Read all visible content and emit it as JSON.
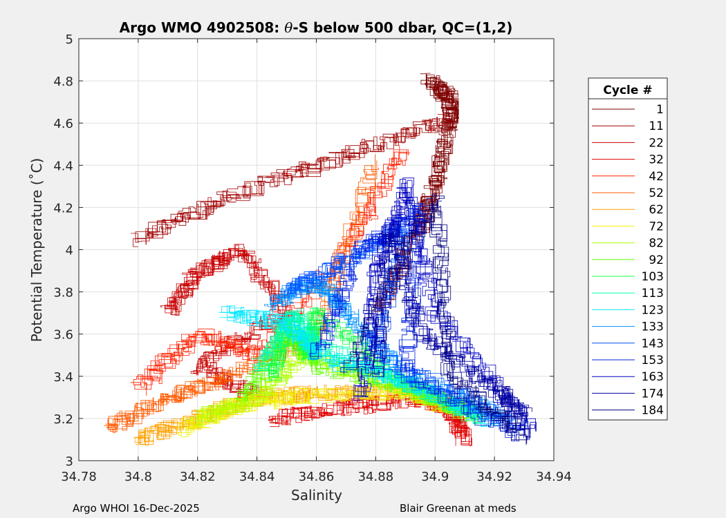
{
  "chart_data": {
    "type": "line",
    "title_prefix": "Argo WMO 4902508: ",
    "title_theta": "θ",
    "title_suffix": "-S below 500 dbar,  QC=(1,2)",
    "xlabel": "Salinity",
    "ylabel": "Potential Temperature (˚C)",
    "xlim": [
      34.78,
      34.94
    ],
    "ylim": [
      3,
      5
    ],
    "xticks": [
      "34.78",
      "34.8",
      "34.82",
      "34.84",
      "34.86",
      "34.88",
      "34.9",
      "34.92",
      "34.94"
    ],
    "yticks": [
      "3",
      "3.2",
      "3.4",
      "3.6",
      "3.8",
      "4",
      "4.2",
      "4.4",
      "4.6",
      "4.8",
      "5"
    ],
    "grid": true,
    "legend_title": "Cycle #",
    "legend_placement": "outside-right",
    "series": [
      {
        "name": "1",
        "color": "#7f0000",
        "points": [
          [
            34.898,
            4.8
          ],
          [
            34.905,
            4.72
          ],
          [
            34.905,
            4.6
          ],
          [
            34.9,
            4.3
          ],
          [
            34.895,
            4.1
          ],
          [
            34.88,
            3.7
          ]
        ]
      },
      {
        "name": "11",
        "color": "#a00000",
        "points": [
          [
            34.8,
            4.05
          ],
          [
            34.83,
            4.25
          ],
          [
            34.87,
            4.45
          ],
          [
            34.905,
            4.62
          ]
        ]
      },
      {
        "name": "22",
        "color": "#c80000",
        "points": [
          [
            34.81,
            3.7
          ],
          [
            34.82,
            3.9
          ],
          [
            34.835,
            4.0
          ],
          [
            34.85,
            3.7
          ],
          [
            34.82,
            3.45
          ],
          [
            34.84,
            3.3
          ]
        ]
      },
      {
        "name": "32",
        "color": "#e00000",
        "points": [
          [
            34.845,
            3.2
          ],
          [
            34.87,
            3.25
          ],
          [
            34.895,
            3.3
          ],
          [
            34.905,
            3.25
          ],
          [
            34.91,
            3.1
          ]
        ]
      },
      {
        "name": "42",
        "color": "#ff2000",
        "points": [
          [
            34.8,
            3.35
          ],
          [
            34.82,
            3.6
          ],
          [
            34.84,
            3.5
          ],
          [
            34.87,
            4.0
          ],
          [
            34.89,
            4.5
          ]
        ]
      },
      {
        "name": "52",
        "color": "#ff5a00",
        "points": [
          [
            34.79,
            3.15
          ],
          [
            34.81,
            3.3
          ],
          [
            34.83,
            3.4
          ],
          [
            34.86,
            3.6
          ],
          [
            34.88,
            4.45
          ]
        ]
      },
      {
        "name": "62",
        "color": "#ffa000",
        "points": [
          [
            34.8,
            3.1
          ],
          [
            34.82,
            3.2
          ],
          [
            34.84,
            3.3
          ],
          [
            34.86,
            3.32
          ],
          [
            34.89,
            3.33
          ],
          [
            34.905,
            3.25
          ]
        ]
      },
      {
        "name": "72",
        "color": "#f0f000",
        "points": [
          [
            34.815,
            3.15
          ],
          [
            34.83,
            3.25
          ],
          [
            34.85,
            3.3
          ],
          [
            34.89,
            3.33
          ],
          [
            34.91,
            3.25
          ]
        ]
      },
      {
        "name": "82",
        "color": "#b0ff00",
        "points": [
          [
            34.82,
            3.2
          ],
          [
            34.84,
            3.3
          ],
          [
            34.855,
            3.5
          ],
          [
            34.89,
            3.34
          ],
          [
            34.912,
            3.22
          ]
        ]
      },
      {
        "name": "92",
        "color": "#60ff00",
        "points": [
          [
            34.835,
            3.3
          ],
          [
            34.85,
            3.6
          ],
          [
            34.86,
            3.45
          ],
          [
            34.89,
            3.35
          ],
          [
            34.915,
            3.22
          ]
        ]
      },
      {
        "name": "103",
        "color": "#10ff40",
        "points": [
          [
            34.845,
            3.4
          ],
          [
            34.85,
            3.65
          ],
          [
            34.858,
            3.5
          ],
          [
            34.86,
            3.7
          ],
          [
            34.89,
            3.36
          ],
          [
            34.915,
            3.2
          ]
        ]
      },
      {
        "name": "113",
        "color": "#00ffb0",
        "points": [
          [
            34.84,
            3.45
          ],
          [
            34.852,
            3.7
          ],
          [
            34.86,
            3.55
          ],
          [
            34.89,
            3.37
          ],
          [
            34.918,
            3.2
          ]
        ]
      },
      {
        "name": "123",
        "color": "#00e8ff",
        "points": [
          [
            34.83,
            3.7
          ],
          [
            34.85,
            3.65
          ],
          [
            34.86,
            3.5
          ],
          [
            34.89,
            3.37
          ],
          [
            34.92,
            3.18
          ]
        ]
      },
      {
        "name": "133",
        "color": "#0090ff",
        "points": [
          [
            34.845,
            3.75
          ],
          [
            34.86,
            3.85
          ],
          [
            34.87,
            3.7
          ],
          [
            34.89,
            3.4
          ],
          [
            34.925,
            3.2
          ]
        ]
      },
      {
        "name": "143",
        "color": "#0050ff",
        "points": [
          [
            34.85,
            3.8
          ],
          [
            34.87,
            3.95
          ],
          [
            34.89,
            4.1
          ],
          [
            34.88,
            3.5
          ],
          [
            34.93,
            3.15
          ]
        ]
      },
      {
        "name": "153",
        "color": "#0020e0",
        "points": [
          [
            34.86,
            3.5
          ],
          [
            34.875,
            4.0
          ],
          [
            34.895,
            4.2
          ],
          [
            34.89,
            3.4
          ],
          [
            34.93,
            3.1
          ]
        ]
      },
      {
        "name": "163",
        "color": "#0000c0",
        "points": [
          [
            34.875,
            3.3
          ],
          [
            34.88,
            3.9
          ],
          [
            34.89,
            4.3
          ],
          [
            34.9,
            3.7
          ],
          [
            34.935,
            3.1
          ]
        ]
      },
      {
        "name": "174",
        "color": "#0000a0",
        "points": [
          [
            34.88,
            3.4
          ],
          [
            34.885,
            4.1
          ],
          [
            34.895,
            3.6
          ],
          [
            34.92,
            3.35
          ],
          [
            34.93,
            3.2
          ]
        ]
      },
      {
        "name": "184",
        "color": "#000080",
        "points": [
          [
            34.87,
            3.45
          ],
          [
            34.9,
            4.25
          ],
          [
            34.905,
            3.4
          ],
          [
            34.93,
            3.1
          ]
        ]
      }
    ]
  },
  "footer": {
    "left": "Argo WHOI 16-Dec-2025",
    "right": "Blair Greenan at meds"
  }
}
